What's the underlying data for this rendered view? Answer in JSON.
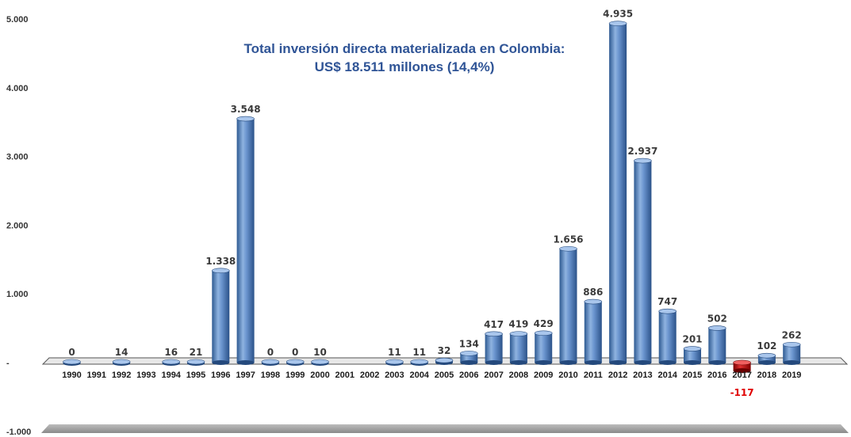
{
  "chart_data": {
    "type": "bar",
    "title": "Total inversión directa materializada  en Colombia:",
    "subtitle": "US$ 18.511 millones (14,4%)",
    "xlabel": "",
    "ylabel": "",
    "ylim": [
      -1000,
      5000
    ],
    "yticks": [
      "-1.000",
      "-",
      "1.000",
      "2.000",
      "3.000",
      "4.000",
      "5.000"
    ],
    "ytick_values": [
      -1000,
      0,
      1000,
      2000,
      3000,
      4000,
      5000
    ],
    "grid": false,
    "colors": {
      "positive": "#4f81bd",
      "negative": "#c00000",
      "title": "#2f5496",
      "negative_label": "#e00000"
    },
    "categories": [
      "1990",
      "1991",
      "1992",
      "1993",
      "1994",
      "1995",
      "1996",
      "1997",
      "1998",
      "1999",
      "2000",
      "2001",
      "2002",
      "2003",
      "2004",
      "2005",
      "2006",
      "2007",
      "2008",
      "2009",
      "2010",
      "2011",
      "2012",
      "2013",
      "2014",
      "2015",
      "2016",
      "2017",
      "2018",
      "2019"
    ],
    "values": [
      0,
      null,
      14,
      null,
      16,
      21,
      1338,
      3548,
      0,
      0,
      10,
      null,
      null,
      11,
      11,
      32,
      134,
      417,
      419,
      429,
      1656,
      886,
      4935,
      2937,
      747,
      201,
      502,
      -117,
      102,
      262
    ],
    "labels": [
      "0",
      "",
      "14",
      "",
      "16",
      "21",
      "1.338",
      "3.548",
      "0",
      "0",
      "10",
      "",
      "",
      "11",
      "11",
      "32",
      "134",
      "417",
      "419",
      "429",
      "1.656",
      "886",
      "4.935",
      "2.937",
      "747",
      "201",
      "502",
      "-117",
      "102",
      "262"
    ]
  }
}
